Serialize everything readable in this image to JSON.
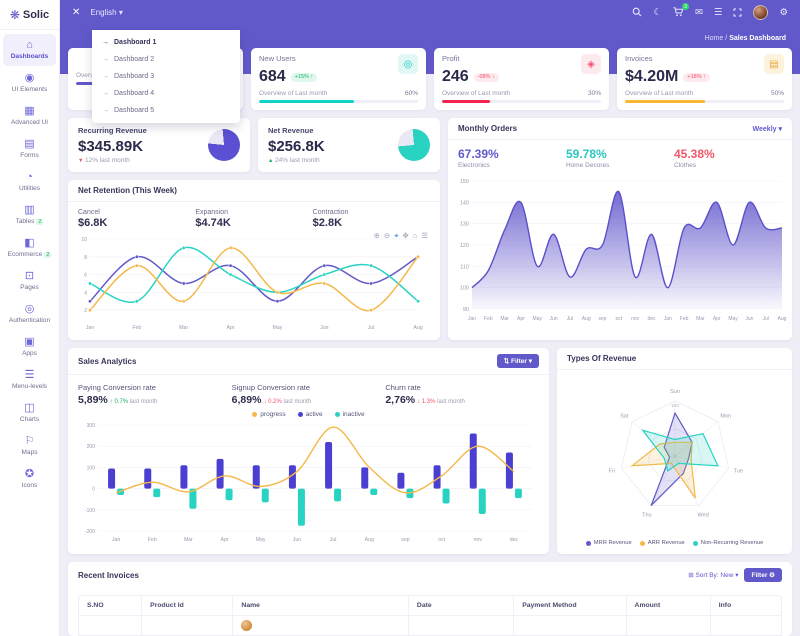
{
  "topbar": {
    "close_label": "✕",
    "language": "English",
    "cart_badge": "3"
  },
  "breadcrumb": {
    "home": "Home",
    "separator": "/",
    "current": "Sales Dashboard"
  },
  "sidebar": {
    "logo": "Solic",
    "items": [
      {
        "label": "Dashboards",
        "icon": "home-icon",
        "glyph": "⌂",
        "active": true
      },
      {
        "label": "UI Elements",
        "icon": "ui-elements-icon",
        "glyph": "◉"
      },
      {
        "label": "Advanced UI",
        "icon": "advanced-ui-icon",
        "glyph": "▦"
      },
      {
        "label": "Forms",
        "icon": "forms-icon",
        "glyph": "▤"
      },
      {
        "label": "Utilities",
        "icon": "utilities-icon",
        "glyph": "◔"
      },
      {
        "label": "Tables",
        "icon": "tables-icon",
        "glyph": "▥",
        "badge": "2"
      },
      {
        "label": "Ecommerce",
        "icon": "ecommerce-icon",
        "glyph": "◧",
        "badge": "2"
      },
      {
        "label": "Pages",
        "icon": "pages-icon",
        "glyph": "⊡"
      },
      {
        "label": "Authentication",
        "icon": "authentication-icon",
        "glyph": "◎"
      },
      {
        "label": "Apps",
        "icon": "apps-icon",
        "glyph": "▣"
      },
      {
        "label": "Menu-levels",
        "icon": "menu-levels-icon",
        "glyph": "☰"
      },
      {
        "label": "Charts",
        "icon": "charts-icon",
        "glyph": "◫"
      },
      {
        "label": "Maps",
        "icon": "maps-icon",
        "glyph": "⚐"
      },
      {
        "label": "Icons",
        "icon": "icons-icon",
        "glyph": "✪"
      }
    ]
  },
  "dashboard_dropdown": {
    "items": [
      "Dashboard 1",
      "Dashboard 2",
      "Dashboard 3",
      "Dashboard 4",
      "Dashboard 5"
    ],
    "active_index": 0
  },
  "kpi_cards": [
    {
      "title": "",
      "value": "",
      "badge": "",
      "trend": "up",
      "overview": "Overview of Last month",
      "percent": "40%",
      "color": "#6159c9",
      "icon": "image-icon",
      "glyph": "▨",
      "icon_bg": "#ece9fb",
      "icon_color": "#6159c9"
    },
    {
      "title": "New Users",
      "value": "684",
      "badge": "+15% ↑",
      "trend": "up",
      "overview": "Overview of Last month",
      "percent": "60%",
      "color": "#12d5c9",
      "icon": "users-icon",
      "glyph": "◎",
      "icon_bg": "#e0f9f6",
      "icon_color": "#12c5ba"
    },
    {
      "title": "Profit",
      "value": "246",
      "badge": "-08% ↓",
      "trend": "down",
      "overview": "Overview of Last month",
      "percent": "30%",
      "color": "#f3254e",
      "icon": "target-icon",
      "glyph": "◈",
      "icon_bg": "#fdeaee",
      "icon_color": "#f3506e"
    },
    {
      "title": "Invoices",
      "value": "$4.20M",
      "badge": "+18% ↑",
      "trend": "down",
      "overview": "Overview of Last month",
      "percent": "50%",
      "color": "#f7b731",
      "icon": "file-icon",
      "glyph": "▤",
      "icon_bg": "#fdf3dd",
      "icon_color": "#e8a93c"
    }
  ],
  "revenue_cards": [
    {
      "title": "Recurring Revenue",
      "value": "$345.89K",
      "arrow": "▼",
      "trend": "down",
      "delta": "12% last month",
      "color": "#5b4fd3",
      "pie_percent": 78
    },
    {
      "title": "Net Revenue",
      "value": "$256.8K",
      "arrow": "▲",
      "trend": "up",
      "delta": "24% last month",
      "color": "#29d3c2",
      "pie_percent": 75
    }
  ],
  "monthly_orders": {
    "title": "Monthly Orders",
    "period": "Weekly ▾",
    "stats": [
      {
        "value": "67.39%",
        "label": "Electronics",
        "color": "#6159c9"
      },
      {
        "value": "59.78%",
        "label": "Home Decores",
        "color": "#29c7c0"
      },
      {
        "value": "45.38%",
        "label": "Clothes",
        "color": "#f0576b"
      }
    ]
  },
  "net_retention": {
    "title": "Net Retention (This Week)",
    "stats": [
      {
        "label": "Cancel",
        "value": "$6.8K"
      },
      {
        "label": "Expansion",
        "value": "$4.74K"
      },
      {
        "label": "Contraction",
        "value": "$2.8K"
      }
    ],
    "toolbar": [
      {
        "name": "zoom-in-icon",
        "glyph": "⊕"
      },
      {
        "name": "zoom-out-icon",
        "glyph": "⊖"
      },
      {
        "name": "selection-zoom-icon",
        "glyph": "⌖",
        "selected": true
      },
      {
        "name": "pan-icon",
        "glyph": "✥"
      },
      {
        "name": "home-reset-icon",
        "glyph": "⌂"
      },
      {
        "name": "menu-icon",
        "glyph": "☰"
      }
    ]
  },
  "sales_analytics": {
    "title": "Sales Analytics",
    "filter_label": "⇅ Filter ▾",
    "stats": [
      {
        "label": "Paying Conversion rate",
        "value": "5,89%",
        "arrow": "↑",
        "delta": "0.7%",
        "suffix": "last month",
        "trend": "up"
      },
      {
        "label": "Signup Conversion rate",
        "value": "6,89%",
        "arrow": "↓",
        "delta": "0.2%",
        "suffix": "last month",
        "trend": "down"
      },
      {
        "label": "Churn rate",
        "value": "2,76%",
        "arrow": "↓",
        "delta": "1.3%",
        "suffix": "last month",
        "trend": "down"
      }
    ],
    "legend": [
      {
        "label": "progress",
        "color": "#f5b849"
      },
      {
        "label": "active",
        "color": "#4a3fd0"
      },
      {
        "label": "inactive",
        "color": "#29d3c2"
      }
    ]
  },
  "types_of_revenue": {
    "title": "Types Of Revenue",
    "legend": [
      {
        "label": "MRR Revenue",
        "color": "#6159c9"
      },
      {
        "label": "ARR Revenue",
        "color": "#f5b849"
      },
      {
        "label": "Non-Recurring Revenue",
        "color": "#29d3c2"
      }
    ]
  },
  "recent_invoices": {
    "title": "Recent Invoices",
    "sort_label": "⊞ Sort By: New ▾",
    "filter_label": "Filter ⚙",
    "columns": [
      "S.NO",
      "Product Id",
      "Name",
      "Date",
      "Payment Method",
      "Amount",
      "Info"
    ]
  },
  "chart_data": [
    {
      "name": "monthly_orders_area",
      "type": "area",
      "x": [
        "Jan",
        "Feb",
        "Mar",
        "Apr",
        "May",
        "Jun",
        "Jul",
        "Aug",
        "sep",
        "oct",
        "nov",
        "dec",
        "Jan",
        "Feb",
        "Mar",
        "Apr",
        "May",
        "Jun",
        "Jul",
        "Aug"
      ],
      "values": [
        100,
        108,
        127,
        140,
        110,
        125,
        105,
        118,
        120,
        145,
        105,
        125,
        100,
        128,
        128,
        140,
        120,
        140,
        128,
        128
      ],
      "ylim": [
        90,
        150
      ],
      "yticks": [
        90,
        100,
        110,
        120,
        130,
        140,
        150
      ],
      "color": "#5b50c9",
      "grid": true,
      "legend_position": "none"
    },
    {
      "name": "net_retention_lines",
      "type": "line",
      "x": [
        "Jan",
        "Feb",
        "Mar",
        "Apr",
        "May",
        "Jun",
        "Jul",
        "Aug"
      ],
      "ylim": [
        1,
        10
      ],
      "yticks": [
        2,
        4,
        6,
        8,
        10
      ],
      "grid": true,
      "series": [
        {
          "name": "Cancel",
          "color": "#6159c9",
          "values": [
            3,
            8,
            5,
            7,
            3,
            7,
            5,
            8
          ]
        },
        {
          "name": "Expansion",
          "color": "#29d3c2",
          "values": [
            5,
            3,
            9,
            6,
            4,
            6,
            7,
            3
          ]
        },
        {
          "name": "Contraction",
          "color": "#f5b849",
          "values": [
            2,
            7,
            3,
            9,
            4,
            5,
            2,
            8
          ]
        }
      ]
    },
    {
      "name": "sales_analytics_combo",
      "type": "bar+line",
      "categories": [
        "Jan",
        "Feb",
        "Mar",
        "Apr",
        "May",
        "Jun",
        "Jul",
        "Aug",
        "sep",
        "oct",
        "nov",
        "dec"
      ],
      "ylim": [
        -200,
        300
      ],
      "yticks": [
        300,
        200,
        100,
        0,
        -100,
        -200
      ],
      "grid": true,
      "series": [
        {
          "name": "active",
          "type": "bar",
          "color": "#4a3fd0",
          "values": [
            95,
            95,
            110,
            140,
            110,
            110,
            220,
            100,
            75,
            110,
            260,
            170
          ]
        },
        {
          "name": "inactive",
          "type": "bar",
          "color": "#29d3c2",
          "values": [
            -30,
            -40,
            -95,
            -55,
            -65,
            -175,
            -60,
            -30,
            -45,
            -70,
            -120,
            -45
          ]
        },
        {
          "name": "progress",
          "type": "line",
          "color": "#f5b849",
          "values": [
            -20,
            30,
            -15,
            60,
            10,
            80,
            290,
            100,
            -20,
            60,
            200,
            80
          ]
        }
      ]
    },
    {
      "name": "types_of_revenue_radar",
      "type": "radar",
      "categories": [
        "Sun",
        "Mon",
        "Tue",
        "Wed",
        "Thu",
        "Fri",
        "Sat"
      ],
      "max": 100,
      "axis_labels": {
        "center": "0",
        "top": "100"
      },
      "series": [
        {
          "name": "MRR Revenue",
          "color": "#6159c9",
          "values": [
            78,
            40,
            25,
            35,
            100,
            10,
            25
          ]
        },
        {
          "name": "ARR Revenue",
          "color": "#f5b849",
          "values": [
            25,
            40,
            30,
            85,
            15,
            80,
            35
          ]
        },
        {
          "name": "Non-Recurring Revenue",
          "color": "#29d3c2",
          "values": [
            30,
            65,
            80,
            15,
            30,
            20,
            75
          ]
        }
      ]
    }
  ]
}
